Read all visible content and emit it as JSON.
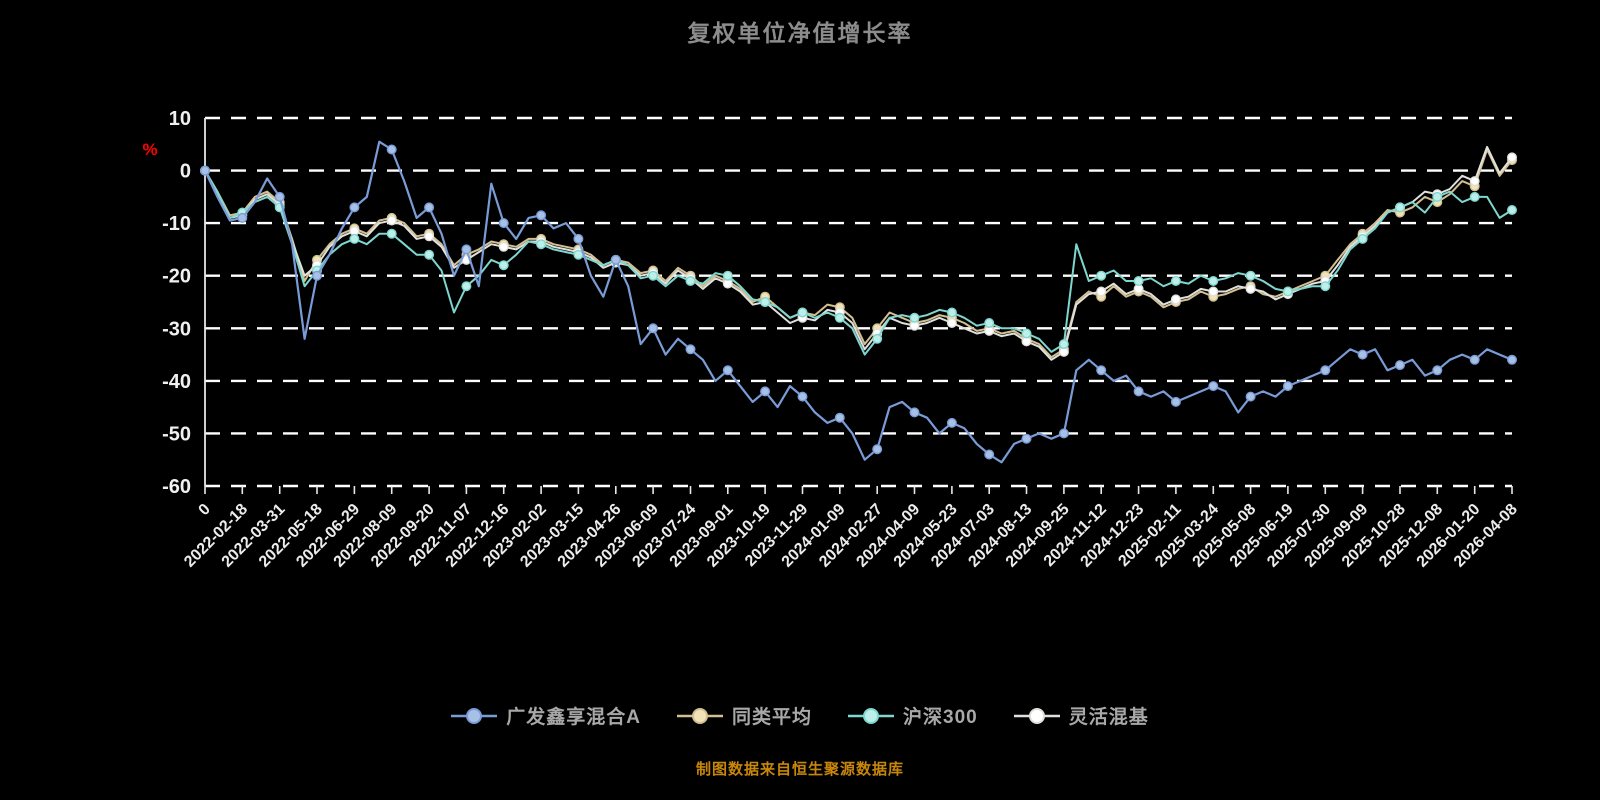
{
  "title": "复权单位净值增长率",
  "caption": "制图数据来自恒生聚源数据库",
  "colors": {
    "background": "#000000",
    "title": "#8C8C8C",
    "caption": "#C8860B",
    "grid": "#FFFFFF",
    "axis": "#E8E8E8",
    "tick_label": "#F0F0F0",
    "percent_label": "#FF0000",
    "legend_text": "#A8A8A8"
  },
  "y_axis": {
    "unit": "%",
    "ticks": [
      10,
      0,
      -10,
      -20,
      -30,
      -40,
      -50,
      -60
    ],
    "min": -60,
    "max": 10
  },
  "x_axis": {
    "tick_labels": [
      "0",
      "2022-02-18",
      "2022-03-31",
      "2022-05-18",
      "2022-06-29",
      "2022-08-09",
      "2022-09-20",
      "2022-11-07",
      "2022-12-16",
      "2023-02-02",
      "2023-03-15",
      "2023-04-26",
      "2023-06-09",
      "2023-07-24",
      "2023-09-01",
      "2023-10-19",
      "2023-11-29",
      "2024-01-09",
      "2024-02-27",
      "2024-04-09",
      "2024-05-23",
      "2024-07-03",
      "2024-08-13",
      "2024-09-25",
      "2024-11-12",
      "2024-12-23",
      "2025-02-11",
      "2025-03-24",
      "2025-05-08",
      "2025-06-19",
      "2025-07-30",
      "2025-09-09",
      "2025-10-28",
      "2025-12-08",
      "2026-01-20",
      "2026-04-08"
    ]
  },
  "chart_data": {
    "type": "line",
    "title": "复权单位净值增长率",
    "ylabel": "%",
    "ylim": [
      -60,
      10
    ],
    "grid": "dashed-horizontal",
    "legend_position": "bottom",
    "points_per_tick": 3,
    "x_tick_labels": [
      "0",
      "2022-02-18",
      "2022-03-31",
      "2022-05-18",
      "2022-06-29",
      "2022-08-09",
      "2022-09-20",
      "2022-11-07",
      "2022-12-16",
      "2023-02-02",
      "2023-03-15",
      "2023-04-26",
      "2023-06-09",
      "2023-07-24",
      "2023-09-01",
      "2023-10-19",
      "2023-11-29",
      "2024-01-09",
      "2024-02-27",
      "2024-04-09",
      "2024-05-23",
      "2024-07-03",
      "2024-08-13",
      "2024-09-25",
      "2024-11-12",
      "2024-12-23",
      "2025-02-11",
      "2025-03-24",
      "2025-05-08",
      "2025-06-19",
      "2025-07-30",
      "2025-09-09",
      "2025-10-28",
      "2025-12-08",
      "2026-01-20",
      "2026-04-08"
    ],
    "series": [
      {
        "name": "广发鑫享混合A",
        "color": "#7A9CD6",
        "marker_fill": "#A6C0E6",
        "values": [
          0,
          -5,
          -9.5,
          -9,
          -6,
          -1.5,
          -5,
          -14,
          -32,
          -20,
          -16,
          -11,
          -7,
          -5,
          5.5,
          4,
          -2,
          -9,
          -7,
          -12,
          -20,
          -15,
          -22,
          -2.5,
          -10,
          -13,
          -9,
          -8.5,
          -11,
          -10,
          -13,
          -20,
          -24,
          -17,
          -22,
          -33,
          -30,
          -35,
          -32,
          -34,
          -36,
          -40,
          -38,
          -41,
          -44,
          -42,
          -45,
          -41,
          -43,
          -46,
          -48,
          -47,
          -50,
          -55,
          -53,
          -45,
          -44,
          -46,
          -47,
          -50,
          -48,
          -49,
          -52,
          -54,
          -55.5,
          -52,
          -51,
          -50,
          -51,
          -50,
          -38,
          -36,
          -38,
          -40,
          -39,
          -42,
          -43,
          -42,
          -44,
          -43,
          -42,
          -41,
          -42,
          -46,
          -43,
          -42,
          -43,
          -41,
          -40,
          -39,
          -38,
          -36,
          -34,
          -35,
          -34,
          -38,
          -37,
          -36,
          -39,
          -38,
          -36,
          -35,
          -36,
          -34,
          -35,
          -36
        ]
      },
      {
        "name": "同类平均",
        "color": "#D2C091",
        "marker_fill": "#F2E2B8",
        "values": [
          0,
          -4,
          -8.5,
          -8,
          -5,
          -4,
          -6,
          -13,
          -21,
          -17,
          -14,
          -12,
          -11,
          -12,
          -9.5,
          -9,
          -10,
          -12.5,
          -12,
          -14,
          -18,
          -16,
          -15,
          -13.5,
          -14,
          -14.5,
          -13,
          -13,
          -14,
          -14.5,
          -15,
          -16,
          -18,
          -17,
          -17.5,
          -19.5,
          -19,
          -21,
          -18.5,
          -20,
          -22,
          -20,
          -21,
          -22.5,
          -25,
          -24,
          -26,
          -28,
          -27,
          -27.5,
          -25.5,
          -26,
          -28,
          -33,
          -30,
          -27,
          -28,
          -29,
          -28.5,
          -27.5,
          -28,
          -29,
          -30.5,
          -30,
          -31,
          -30.5,
          -32,
          -33,
          -35.5,
          -34,
          -25,
          -23,
          -24,
          -22,
          -24,
          -23,
          -24,
          -26,
          -25,
          -24.5,
          -23,
          -24,
          -23.5,
          -22.5,
          -22,
          -23.5,
          -24,
          -23,
          -22,
          -21,
          -20,
          -17,
          -14,
          -12,
          -10,
          -7.5,
          -8,
          -7,
          -5,
          -6,
          -4.5,
          -2,
          -3,
          4,
          -1,
          2
        ]
      },
      {
        "name": "沪深300",
        "color": "#7FD6CE",
        "marker_fill": "#BCEFE9",
        "values": [
          0,
          -4,
          -9,
          -8,
          -6,
          -5,
          -7,
          -14,
          -22,
          -19,
          -16,
          -14,
          -13,
          -14,
          -12,
          -12,
          -14,
          -16,
          -16,
          -19,
          -27,
          -22,
          -20,
          -17,
          -18,
          -16,
          -13.5,
          -14,
          -15,
          -15.5,
          -16,
          -17,
          -18,
          -17,
          -18,
          -20.5,
          -20,
          -22,
          -20,
          -21,
          -21.5,
          -19.5,
          -20,
          -22,
          -24.5,
          -25,
          -26,
          -28,
          -27,
          -28,
          -27,
          -28,
          -30,
          -35,
          -32,
          -28,
          -27.5,
          -28,
          -27.5,
          -26.5,
          -27,
          -28,
          -29.5,
          -29,
          -30,
          -30,
          -31,
          -32,
          -34.5,
          -33,
          -14,
          -21,
          -20,
          -19,
          -21,
          -21,
          -20.5,
          -22,
          -21,
          -21.5,
          -20,
          -21,
          -20.5,
          -19.5,
          -20,
          -21,
          -22.5,
          -23,
          -22.5,
          -22,
          -22,
          -19,
          -15,
          -13,
          -11,
          -8,
          -7,
          -6,
          -8,
          -5,
          -4,
          -6,
          -5,
          -5,
          -9,
          -7.5
        ]
      },
      {
        "name": "灵活混基",
        "color": "#E0E0DC",
        "marker_fill": "#FFFFFF",
        "values": [
          0,
          -4.5,
          -9,
          -8.5,
          -5.5,
          -4.5,
          -6.5,
          -13.5,
          -20,
          -18,
          -14.5,
          -12.5,
          -11.5,
          -12.5,
          -10,
          -9.5,
          -10.5,
          -13,
          -12.5,
          -14.5,
          -18.5,
          -17,
          -15.5,
          -14,
          -14.5,
          -15,
          -13.5,
          -13.5,
          -14.5,
          -15,
          -15.5,
          -16.5,
          -18.5,
          -17.5,
          -18,
          -20,
          -19.5,
          -21.5,
          -19,
          -20.5,
          -22.5,
          -20.5,
          -21.5,
          -23,
          -25.5,
          -25,
          -27,
          -29,
          -28,
          -28.5,
          -26.5,
          -27,
          -29,
          -34,
          -31,
          -28,
          -29,
          -29.5,
          -29,
          -28,
          -29,
          -30,
          -31,
          -30.5,
          -31.5,
          -31,
          -32.5,
          -33.5,
          -36,
          -34.5,
          -25.5,
          -23.5,
          -23,
          -21.5,
          -23.5,
          -22.5,
          -23.5,
          -25.5,
          -24.5,
          -24,
          -22.5,
          -23,
          -23,
          -22,
          -22.5,
          -23,
          -24.5,
          -23.5,
          -22.5,
          -21.5,
          -21,
          -18,
          -14.5,
          -12.5,
          -10.5,
          -8,
          -7,
          -6,
          -4,
          -4.5,
          -3.5,
          -1,
          -2,
          4.5,
          -0.5,
          2.5
        ]
      }
    ]
  }
}
